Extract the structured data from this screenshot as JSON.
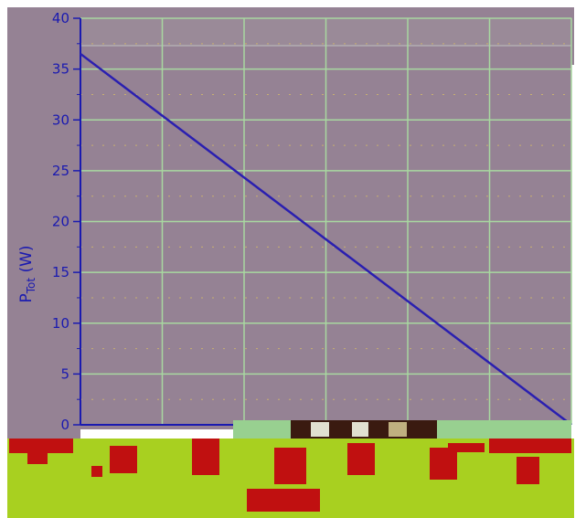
{
  "chart_data": {
    "type": "line",
    "title": "",
    "xlabel": "",
    "ylabel": "P",
    "ylabel_sub": "Tot",
    "ylabel_unit": " (W)",
    "x": [
      0,
      1
    ],
    "ylim": [
      0,
      40
    ],
    "y_ticks": [
      0,
      5,
      10,
      15,
      20,
      25,
      30,
      35,
      40
    ],
    "y_tick_labels": [
      "0",
      "5",
      "10",
      "15",
      "20",
      "25",
      "30",
      "35",
      "40"
    ],
    "grid": true,
    "series": [
      {
        "values": [
          36.5,
          0
        ]
      }
    ],
    "colors": {
      "plot_bg": "#958294",
      "grid_major": "#a8d8a0",
      "grid_minor": "#c8b070",
      "axis": "#1a1ab0",
      "line": "#2a1fb0",
      "band_green": "#a8d020",
      "band_green_light": "#98d090",
      "band_red": "#c01010"
    }
  }
}
